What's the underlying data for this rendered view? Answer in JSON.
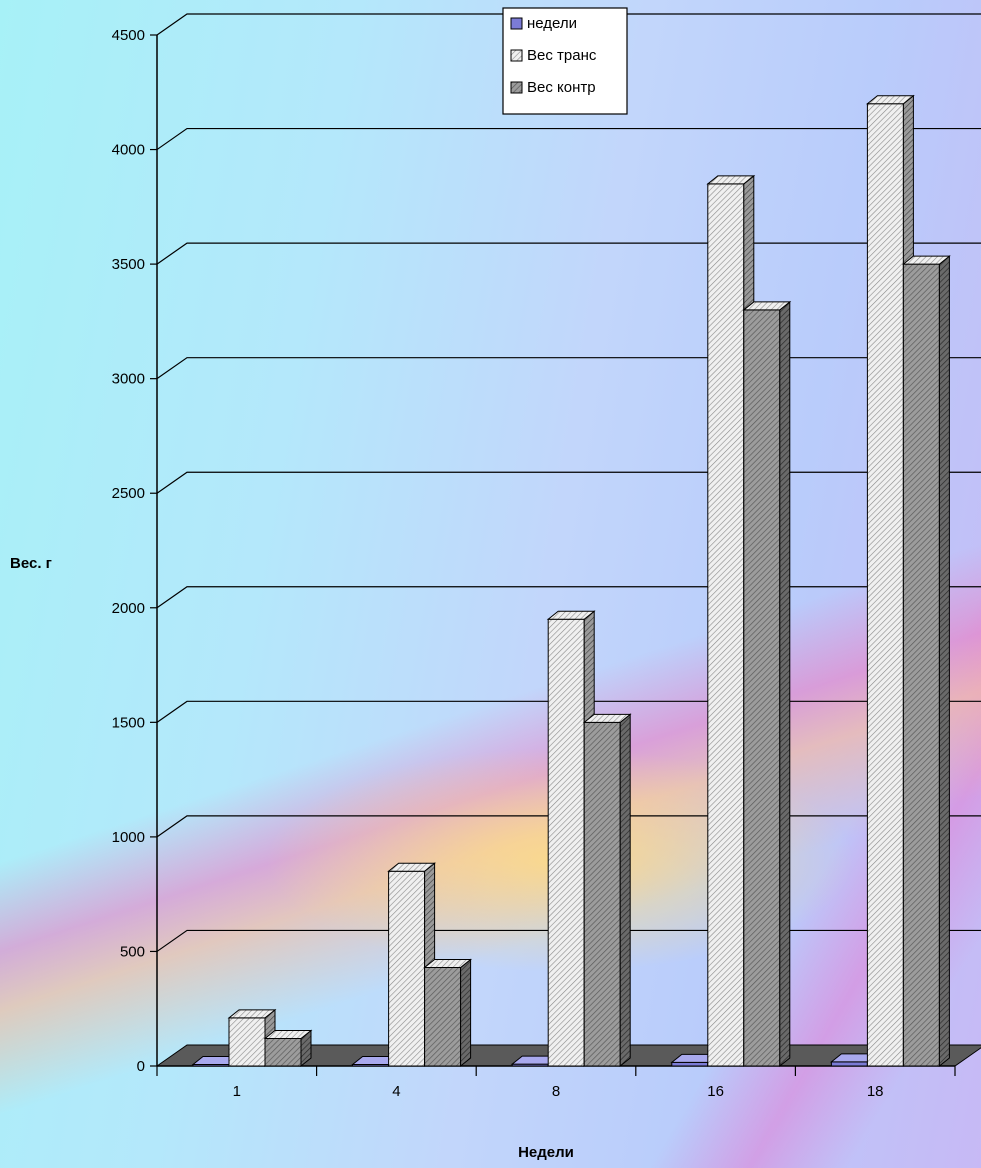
{
  "chart_data": {
    "type": "bar",
    "categories": [
      "1",
      "4",
      "8",
      "16",
      "18"
    ],
    "series": [
      {
        "name": "недели",
        "values": [
          1,
          4,
          8,
          16,
          18
        ],
        "color": "#7b7bd6",
        "pattern": "solid-blue"
      },
      {
        "name": "Вес транс",
        "values": [
          210,
          850,
          1950,
          3850,
          4200
        ],
        "color": "#d8d8d8",
        "pattern": "light-hatch"
      },
      {
        "name": "Вес контр",
        "values": [
          120,
          430,
          1500,
          3300,
          3500
        ],
        "color": "#8e8e8e",
        "pattern": "dark-hatch"
      }
    ],
    "xlabel": "Недели",
    "ylabel": "Вес. г",
    "ylim": [
      0,
      4500
    ],
    "yticks": [
      0,
      500,
      1000,
      1500,
      2000,
      2500,
      3000,
      3500,
      4000,
      4500
    ],
    "grid": true,
    "legend_position": "top-center",
    "three_d": true
  }
}
